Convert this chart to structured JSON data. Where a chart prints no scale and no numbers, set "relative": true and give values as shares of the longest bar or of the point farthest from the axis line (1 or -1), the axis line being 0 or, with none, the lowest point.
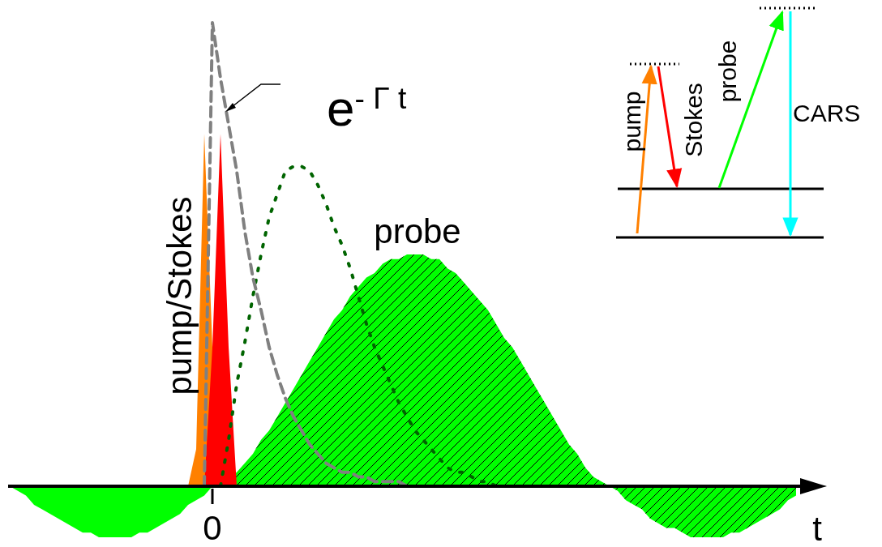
{
  "chart_data": {
    "type": "area",
    "relative": true,
    "xlabel": "t",
    "legend": false,
    "grid": false,
    "categories": [
      null,
      null,
      null,
      null,
      null,
      null,
      null,
      null,
      null,
      null,
      null,
      null,
      null,
      null,
      null,
      null,
      null,
      null,
      null,
      null,
      null,
      null,
      null,
      null,
      null,
      null,
      null,
      null,
      null,
      null,
      null,
      null,
      null,
      null,
      null,
      null,
      null,
      null,
      null,
      null,
      null,
      null,
      null,
      null,
      null,
      null,
      null,
      null,
      null,
      null,
      null,
      null,
      null,
      null,
      null,
      null,
      null,
      null,
      null,
      null,
      null,
      null,
      null,
      null,
      null,
      null,
      null,
      null,
      null,
      null,
      null,
      null,
      null,
      null,
      null,
      null,
      null,
      null,
      null,
      null,
      null,
      null,
      null,
      null,
      null,
      null,
      null,
      null,
      null,
      null,
      null,
      null,
      null,
      null,
      null,
      null,
      null,
      null,
      null
    ],
    "series": [
      {
        "type": "area",
        "color": "#00ff00",
        "values": [
          0,
          -0.01,
          -0.02,
          -0.04,
          -0.05,
          -0.06,
          -0.07,
          -0.08,
          -0.09,
          -0.1,
          -0.1,
          -0.11,
          -0.11,
          -0.11,
          -0.11,
          -0.11,
          -0.1,
          -0.1,
          -0.09,
          -0.08,
          -0.07,
          -0.06,
          -0.04,
          -0.03,
          -0.02,
          0,
          0,
          null,
          0.03,
          0.05,
          0.07,
          0.1,
          0.12,
          0.15,
          0.18,
          0.21,
          0.24,
          0.27,
          0.3,
          0.33,
          0.36,
          0.38,
          0.41,
          0.43,
          0.45,
          0.46,
          0.48,
          0.49,
          0.49,
          0.5,
          0.5,
          0.5,
          0.49,
          0.49,
          0.47,
          0.46,
          0.44,
          0.42,
          0.4,
          0.38,
          0.35,
          0.32,
          0.3,
          0.27,
          0.24,
          0.21,
          0.18,
          0.15,
          0.12,
          0.09,
          0.07,
          0.04,
          0.02,
          0.01,
          0,
          -0.01,
          -0.03,
          -0.04,
          -0.05,
          -0.07,
          -0.08,
          -0.09,
          -0.09,
          -0.1,
          -0.11,
          -0.11,
          -0.11,
          -0.11,
          -0.11,
          -0.1,
          -0.1,
          -0.09,
          -0.08,
          -0.07,
          -0.06,
          -0.05,
          -0.03,
          -0.02,
          null
        ]
      },
      {
        "type": "line",
        "line_style": "dotted",
        "color": "#006400",
        "values": [
          null,
          null,
          null,
          null,
          null,
          null,
          null,
          null,
          null,
          null,
          null,
          null,
          null,
          null,
          null,
          null,
          null,
          null,
          null,
          null,
          null,
          null,
          null,
          null,
          null,
          null,
          0,
          0.1,
          0.22,
          0.31,
          0.41,
          0.5,
          0.58,
          0.63,
          0.68,
          0.69,
          0.69,
          0.68,
          0.65,
          0.61,
          0.56,
          0.52,
          0.47,
          0.41,
          0.35,
          0.3,
          0.26,
          0.22,
          0.18,
          0.15,
          0.12,
          0.1,
          0.08,
          0.06,
          0.04,
          0.03,
          0.03,
          0.02,
          0.01,
          0.01,
          0,
          null,
          null,
          null,
          null,
          null,
          null,
          null,
          null,
          null,
          null,
          null,
          null,
          null,
          null,
          null,
          null,
          null,
          null,
          null,
          null,
          null,
          null,
          null,
          null,
          null,
          null,
          null,
          null,
          null,
          null,
          null,
          null,
          null,
          null,
          null,
          null,
          null,
          null
        ]
      },
      {
        "type": "area",
        "color": "#ff8000",
        "values": [
          null,
          null,
          null,
          null,
          null,
          null,
          null,
          null,
          null,
          null,
          null,
          null,
          null,
          null,
          null,
          null,
          null,
          null,
          null,
          null,
          null,
          null,
          0,
          0.08,
          0.76,
          0.3,
          0,
          null,
          null,
          null,
          null,
          null,
          null,
          null,
          null,
          null,
          null,
          null,
          null,
          null,
          null,
          null,
          null,
          null,
          null,
          null,
          null,
          null,
          null,
          null,
          null,
          null,
          null,
          null,
          null,
          null,
          null,
          null,
          null,
          null,
          null,
          null,
          null,
          null,
          null,
          null,
          null,
          null,
          null,
          null,
          null,
          null,
          null,
          null,
          null,
          null,
          null,
          null,
          null,
          null,
          null,
          null,
          null,
          null,
          null,
          null,
          null,
          null,
          null,
          null,
          null,
          null,
          null,
          null,
          null,
          null,
          null,
          null,
          null
        ]
      },
      {
        "type": "area",
        "color": "#ff0000",
        "values": [
          null,
          null,
          null,
          null,
          null,
          null,
          null,
          null,
          null,
          null,
          null,
          null,
          null,
          null,
          null,
          null,
          null,
          null,
          null,
          null,
          null,
          null,
          null,
          null,
          0,
          0.3,
          0.76,
          0.3,
          0,
          null,
          null,
          null,
          null,
          null,
          null,
          null,
          null,
          null,
          null,
          null,
          null,
          null,
          null,
          null,
          null,
          null,
          null,
          null,
          null,
          null,
          null,
          null,
          null,
          null,
          null,
          null,
          null,
          null,
          null,
          null,
          null,
          null,
          null,
          null,
          null,
          null,
          null,
          null,
          null,
          null,
          null,
          null,
          null,
          null,
          null,
          null,
          null,
          null,
          null,
          null,
          null,
          null,
          null,
          null,
          null,
          null,
          null,
          null,
          null,
          null,
          null,
          null,
          null,
          null,
          null,
          null,
          null,
          null,
          null
        ]
      },
      {
        "type": "line",
        "line_style": "dashed",
        "color": "#808080",
        "values": [
          null,
          null,
          null,
          null,
          null,
          null,
          null,
          null,
          null,
          null,
          null,
          null,
          null,
          null,
          null,
          null,
          null,
          null,
          null,
          null,
          null,
          null,
          null,
          null,
          0,
          1,
          0.88,
          0.78,
          0.68,
          0.55,
          0.45,
          0.38,
          0.3,
          0.24,
          0.19,
          0.15,
          0.12,
          0.09,
          0.07,
          0.05,
          0.04,
          0.03,
          0.03,
          0.02,
          0.02,
          0.01,
          0.01,
          0.01,
          0.01,
          0,
          0,
          0,
          0,
          0,
          0,
          0,
          0,
          0,
          0,
          0,
          0,
          null,
          null,
          null,
          null,
          null,
          null,
          null,
          null,
          null,
          null,
          null,
          null,
          null,
          null,
          null,
          null,
          null,
          null,
          null,
          null,
          null,
          null,
          null,
          null,
          null,
          null,
          null,
          null,
          null,
          null,
          null,
          null,
          null,
          null,
          null,
          null,
          null,
          null
        ]
      }
    ],
    "annotations": [
      "pump/Stokes",
      "probe",
      "e$^{- Γ t}$",
      "pump",
      "Stokes",
      "probe",
      "CARS",
      "0"
    ]
  }
}
